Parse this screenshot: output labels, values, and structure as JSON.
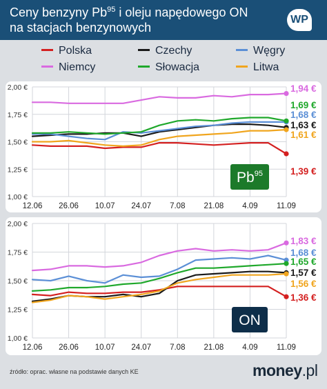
{
  "header": {
    "title_line1_main": "Ceny benzyny Pb",
    "title_line1_sup": "95",
    "title_line1_rest": " i oleju napędowego ON",
    "title_line2": "na stacjach benzynowych",
    "logo": "WP"
  },
  "legend": [
    {
      "name": "Polska",
      "color": "#d42020"
    },
    {
      "name": "Czechy",
      "color": "#1a1a1a"
    },
    {
      "name": "Węgry",
      "color": "#5b8fd6"
    },
    {
      "name": "Niemcy",
      "color": "#d96ae0"
    },
    {
      "name": "Słowacja",
      "color": "#1fa82b"
    },
    {
      "name": "Litwa",
      "color": "#f0a51e"
    }
  ],
  "chart_data": [
    {
      "type": "line",
      "badge": "Pb",
      "badge_sup": "95",
      "categories": [
        "12.06",
        "26.06",
        "10.07",
        "24.07",
        "7.08",
        "21.08",
        "4.09",
        "11.09"
      ],
      "y_ticks": [
        "2,00 €",
        "1,75 €",
        "1,50 €",
        "1,25 €",
        "1,00 €"
      ],
      "ylim": [
        1.0,
        2.0
      ],
      "grid": true,
      "x": [
        0,
        0.5,
        1,
        1.5,
        2,
        2.5,
        3,
        3.5,
        4,
        4.5,
        5,
        5.5,
        6,
        6.5,
        7
      ],
      "series": [
        {
          "name": "Polska",
          "color": "#d42020",
          "values": [
            1.47,
            1.46,
            1.46,
            1.46,
            1.44,
            1.45,
            1.45,
            1.49,
            1.49,
            1.48,
            1.47,
            1.48,
            1.49,
            1.49,
            1.39
          ],
          "end_label": "1,39 €"
        },
        {
          "name": "Czechy",
          "color": "#1a1a1a",
          "values": [
            1.55,
            1.56,
            1.57,
            1.57,
            1.58,
            1.58,
            1.55,
            1.59,
            1.61,
            1.63,
            1.65,
            1.66,
            1.66,
            1.65,
            1.63
          ],
          "end_label": "1,63 €"
        },
        {
          "name": "Węgry",
          "color": "#5b8fd6",
          "values": [
            1.57,
            1.57,
            1.55,
            1.53,
            1.52,
            1.59,
            1.58,
            1.6,
            1.62,
            1.64,
            1.65,
            1.67,
            1.68,
            1.68,
            1.68
          ],
          "end_label": "1,68 €"
        },
        {
          "name": "Niemcy",
          "color": "#d96ae0",
          "values": [
            1.86,
            1.86,
            1.85,
            1.85,
            1.85,
            1.85,
            1.88,
            1.91,
            1.9,
            1.9,
            1.92,
            1.91,
            1.93,
            1.93,
            1.94
          ],
          "end_label": "1,94 €"
        },
        {
          "name": "Słowacja",
          "color": "#1fa82b",
          "values": [
            1.58,
            1.58,
            1.59,
            1.58,
            1.57,
            1.58,
            1.59,
            1.65,
            1.69,
            1.7,
            1.69,
            1.71,
            1.72,
            1.72,
            1.69
          ],
          "end_label": "1,69 €"
        },
        {
          "name": "Litwa",
          "color": "#f0a51e",
          "values": [
            1.5,
            1.5,
            1.51,
            1.49,
            1.47,
            1.46,
            1.47,
            1.52,
            1.55,
            1.56,
            1.57,
            1.58,
            1.6,
            1.6,
            1.61
          ],
          "end_label": "1,61 €"
        }
      ]
    },
    {
      "type": "line",
      "badge": "ON",
      "badge_sup": "",
      "categories": [
        "12.06",
        "26.06",
        "10.07",
        "24.07",
        "7.08",
        "21.08",
        "4.09",
        "11.09"
      ],
      "y_ticks": [
        "2,00 €",
        "1,75 €",
        "1,50 €",
        "1,25 €",
        "1,00 €"
      ],
      "ylim": [
        1.0,
        2.0
      ],
      "grid": true,
      "x": [
        0,
        0.5,
        1,
        1.5,
        2,
        2.5,
        3,
        3.5,
        4,
        4.5,
        5,
        5.5,
        6,
        6.5,
        7
      ],
      "series": [
        {
          "name": "Polska",
          "color": "#d42020",
          "values": [
            1.38,
            1.37,
            1.4,
            1.39,
            1.39,
            1.4,
            1.4,
            1.42,
            1.45,
            1.45,
            1.45,
            1.45,
            1.45,
            1.45,
            1.36
          ],
          "end_label": "1,36 €"
        },
        {
          "name": "Czechy",
          "color": "#1a1a1a",
          "values": [
            1.32,
            1.34,
            1.37,
            1.36,
            1.36,
            1.38,
            1.36,
            1.39,
            1.5,
            1.55,
            1.56,
            1.57,
            1.58,
            1.58,
            1.57
          ],
          "end_label": "1,57 €"
        },
        {
          "name": "Węgry",
          "color": "#5b8fd6",
          "values": [
            1.51,
            1.5,
            1.54,
            1.5,
            1.48,
            1.55,
            1.53,
            1.54,
            1.6,
            1.68,
            1.69,
            1.7,
            1.69,
            1.72,
            1.68
          ],
          "end_label": "1,68 €"
        },
        {
          "name": "Niemcy",
          "color": "#d96ae0",
          "values": [
            1.59,
            1.6,
            1.63,
            1.63,
            1.62,
            1.63,
            1.66,
            1.72,
            1.76,
            1.78,
            1.76,
            1.77,
            1.76,
            1.77,
            1.83
          ],
          "end_label": "1,83 €"
        },
        {
          "name": "Słowacja",
          "color": "#1fa82b",
          "values": [
            1.41,
            1.42,
            1.44,
            1.44,
            1.45,
            1.47,
            1.48,
            1.52,
            1.57,
            1.61,
            1.61,
            1.62,
            1.63,
            1.64,
            1.65
          ],
          "end_label": "1,65 €"
        },
        {
          "name": "Litwa",
          "color": "#f0a51e",
          "values": [
            1.31,
            1.33,
            1.37,
            1.36,
            1.34,
            1.36,
            1.38,
            1.41,
            1.48,
            1.51,
            1.53,
            1.55,
            1.55,
            1.55,
            1.56
          ],
          "end_label": "1,56 €"
        }
      ]
    }
  ],
  "footer": {
    "source": "źródło: oprac. własne na podstawie danych KE",
    "brand_main": "money",
    "brand_suffix": ".pl"
  }
}
